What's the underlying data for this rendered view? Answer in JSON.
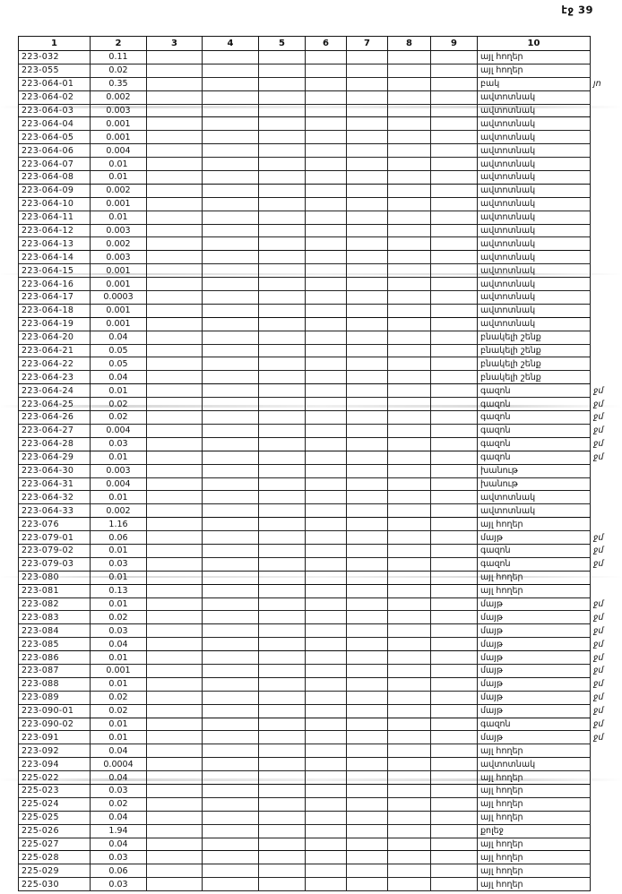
{
  "page_label": "էջ 39",
  "table": {
    "headers": [
      "1",
      "2",
      "3",
      "4",
      "5",
      "6",
      "7",
      "8",
      "9",
      "10"
    ],
    "rows": [
      {
        "code": "223-032",
        "area": "0.11",
        "land_use": "այլ հողեր",
        "note": ""
      },
      {
        "code": "223-055",
        "area": "0.02",
        "land_use": "այլ հողեր",
        "note": ""
      },
      {
        "code": "223-064-01",
        "area": "0.35",
        "land_use": "բակ",
        "note": "յո"
      },
      {
        "code": "223-064-02",
        "area": "0.002",
        "land_use": "ավտոտնակ",
        "note": ""
      },
      {
        "code": "223-064-03",
        "area": "0.003",
        "land_use": "ավտոտնակ",
        "note": ""
      },
      {
        "code": "223-064-04",
        "area": "0.001",
        "land_use": "ավտոտնակ",
        "note": ""
      },
      {
        "code": "223-064-05",
        "area": "0.001",
        "land_use": "ավտոտնակ",
        "note": ""
      },
      {
        "code": "223-064-06",
        "area": "0.004",
        "land_use": "ավտոտնակ",
        "note": ""
      },
      {
        "code": "223-064-07",
        "area": "0.01",
        "land_use": "ավտոտնակ",
        "note": ""
      },
      {
        "code": "223-064-08",
        "area": "0.01",
        "land_use": "ավտոտնակ",
        "note": ""
      },
      {
        "code": "223-064-09",
        "area": "0.002",
        "land_use": "ավտոտնակ",
        "note": ""
      },
      {
        "code": "223-064-10",
        "area": "0.001",
        "land_use": "ավտոտնակ",
        "note": ""
      },
      {
        "code": "223-064-11",
        "area": "0.01",
        "land_use": "ավտոտնակ",
        "note": ""
      },
      {
        "code": "223-064-12",
        "area": "0.003",
        "land_use": "ավտոտնակ",
        "note": ""
      },
      {
        "code": "223-064-13",
        "area": "0.002",
        "land_use": "ավտոտնակ",
        "note": ""
      },
      {
        "code": "223-064-14",
        "area": "0.003",
        "land_use": "ավտոտնակ",
        "note": ""
      },
      {
        "code": "223-064-15",
        "area": "0.001",
        "land_use": "ավտոտնակ",
        "note": ""
      },
      {
        "code": "223-064-16",
        "area": "0.001",
        "land_use": "ավտոտնակ",
        "note": ""
      },
      {
        "code": "223-064-17",
        "area": "0.0003",
        "land_use": "ավտոտնակ",
        "note": ""
      },
      {
        "code": "223-064-18",
        "area": "0.001",
        "land_use": "ավտոտնակ",
        "note": ""
      },
      {
        "code": "223-064-19",
        "area": "0.001",
        "land_use": "ավտոտնակ",
        "note": ""
      },
      {
        "code": "223-064-20",
        "area": "0.04",
        "land_use": "բնակելի շենք",
        "note": ""
      },
      {
        "code": "223-064-21",
        "area": "0.05",
        "land_use": "բնակելի շենք",
        "note": ""
      },
      {
        "code": "223-064-22",
        "area": "0.05",
        "land_use": "բնակելի շենք",
        "note": ""
      },
      {
        "code": "223-064-23",
        "area": "0.04",
        "land_use": "բնակելի շենք",
        "note": ""
      },
      {
        "code": "223-064-24",
        "area": "0.01",
        "land_use": "գազոն",
        "note": "ջմ"
      },
      {
        "code": "223-064-25",
        "area": "0.02",
        "land_use": "գազոն",
        "note": "ջմ"
      },
      {
        "code": "223-064-26",
        "area": "0.02",
        "land_use": "գազոն",
        "note": "ջմ"
      },
      {
        "code": "223-064-27",
        "area": "0.004",
        "land_use": "գազոն",
        "note": "ջմ"
      },
      {
        "code": "223-064-28",
        "area": "0.03",
        "land_use": "գազոն",
        "note": "ջմ"
      },
      {
        "code": "223-064-29",
        "area": "0.01",
        "land_use": "գազոն",
        "note": "ջմ"
      },
      {
        "code": "223-064-30",
        "area": "0.003",
        "land_use": "խանութ",
        "note": ""
      },
      {
        "code": "223-064-31",
        "area": "0.004",
        "land_use": "խանութ",
        "note": ""
      },
      {
        "code": "223-064-32",
        "area": "0.01",
        "land_use": "ավտոտնակ",
        "note": ""
      },
      {
        "code": "223-064-33",
        "area": "0.002",
        "land_use": "ավտոտնակ",
        "note": ""
      },
      {
        "code": "223-076",
        "area": "1.16",
        "land_use": "այլ հողեր",
        "note": ""
      },
      {
        "code": "223-079-01",
        "area": "0.06",
        "land_use": "մայթ",
        "note": "ջմ"
      },
      {
        "code": "223-079-02",
        "area": "0.01",
        "land_use": "գազոն",
        "note": "ջմ"
      },
      {
        "code": "223-079-03",
        "area": "0.03",
        "land_use": "գազոն",
        "note": "ջմ"
      },
      {
        "code": "223-080",
        "area": "0.01",
        "land_use": "այլ հողեր",
        "note": ""
      },
      {
        "code": "223-081",
        "area": "0.13",
        "land_use": "այլ հողեր",
        "note": ""
      },
      {
        "code": "223-082",
        "area": "0.01",
        "land_use": "մայթ",
        "note": "ջմ"
      },
      {
        "code": "223-083",
        "area": "0.02",
        "land_use": "մայթ",
        "note": "ջմ"
      },
      {
        "code": "223-084",
        "area": "0.03",
        "land_use": "մայթ",
        "note": "ջմ"
      },
      {
        "code": "223-085",
        "area": "0.04",
        "land_use": "մայթ",
        "note": "ջմ"
      },
      {
        "code": "223-086",
        "area": "0.01",
        "land_use": "մայթ",
        "note": "ջմ"
      },
      {
        "code": "223-087",
        "area": "0.001",
        "land_use": "մայթ",
        "note": "ջմ"
      },
      {
        "code": "223-088",
        "area": "0.01",
        "land_use": "մայթ",
        "note": "ջմ"
      },
      {
        "code": "223-089",
        "area": "0.02",
        "land_use": "մայթ",
        "note": "ջմ"
      },
      {
        "code": "223-090-01",
        "area": "0.02",
        "land_use": "մայթ",
        "note": "ջմ"
      },
      {
        "code": "223-090-02",
        "area": "0.01",
        "land_use": "գազոն",
        "note": "ջմ"
      },
      {
        "code": "223-091",
        "area": "0.01",
        "land_use": "մայթ",
        "note": "ջմ"
      },
      {
        "code": "223-092",
        "area": "0.04",
        "land_use": "այլ հողեր",
        "note": ""
      },
      {
        "code": "223-094",
        "area": "0.0004",
        "land_use": "ավտոտնակ",
        "note": ""
      },
      {
        "code": "225-022",
        "area": "0.04",
        "land_use": "այլ հողեր",
        "note": ""
      },
      {
        "code": "225-023",
        "area": "0.03",
        "land_use": "այլ հողեր",
        "note": ""
      },
      {
        "code": "225-024",
        "area": "0.02",
        "land_use": "այլ հողեր",
        "note": ""
      },
      {
        "code": "225-025",
        "area": "0.04",
        "land_use": "այլ հողեր",
        "note": ""
      },
      {
        "code": "225-026",
        "area": "1.94",
        "land_use": "քոլեջ",
        "note": ""
      },
      {
        "code": "225-027",
        "area": "0.04",
        "land_use": "այլ հողեր",
        "note": ""
      },
      {
        "code": "225-028",
        "area": "0.03",
        "land_use": "այլ հողեր",
        "note": ""
      },
      {
        "code": "225-029",
        "area": "0.06",
        "land_use": "այլ հողեր",
        "note": ""
      },
      {
        "code": "225-030",
        "area": "0.03",
        "land_use": "այլ հողեր",
        "note": ""
      }
    ]
  }
}
